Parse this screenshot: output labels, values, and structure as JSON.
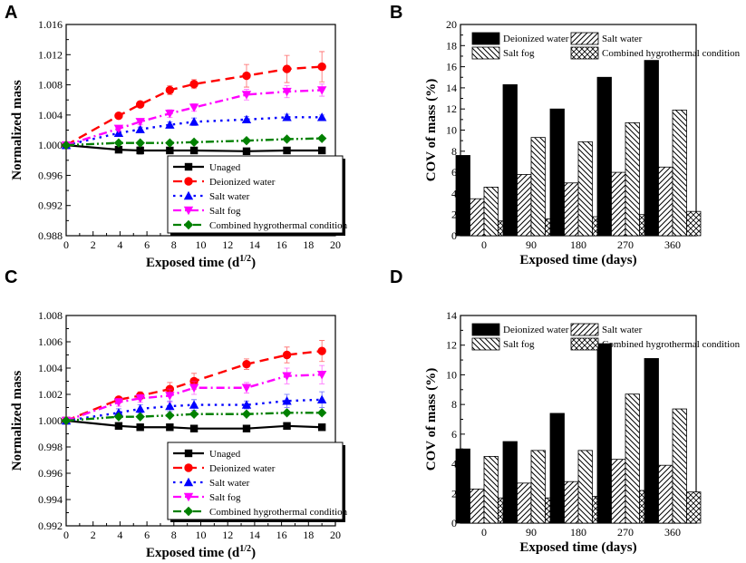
{
  "colors": {
    "unaged": "#000000",
    "deionized": "#ff0000",
    "salt_water": "#0000ff",
    "salt_fog": "#ff00ff",
    "combined": "#008000",
    "bar_fill": "#000000"
  },
  "chart_data": [
    {
      "panel": "A",
      "type": "line",
      "xlabel": "Exposed time (d",
      "xlabel_sup": "1/2",
      "xlabel_end": ")",
      "ylabel": "Normalized mass",
      "xlim": [
        0,
        20
      ],
      "ylim": [
        0.988,
        1.016
      ],
      "xticks": [
        "0",
        "2",
        "4",
        "6",
        "8",
        "10",
        "12",
        "14",
        "16",
        "18",
        "20"
      ],
      "yticks": [
        "0.988",
        "0.992",
        "0.996",
        "1.000",
        "1.004",
        "1.008",
        "1.012",
        "1.016"
      ],
      "x": [
        0,
        3.9,
        5.5,
        7.7,
        9.5,
        13.4,
        16.4,
        19
      ],
      "legend": "bottom-right",
      "series": [
        {
          "key": "unaged",
          "name": "Unaged",
          "style": "solid",
          "marker": "square",
          "values": [
            1.0,
            0.9994,
            0.9993,
            0.9993,
            0.9993,
            0.9992,
            0.9993,
            0.9993
          ],
          "err": [
            0,
            0.0003,
            0.0005,
            0.0004,
            0.0004,
            0.0003,
            0.0003,
            0.0003
          ]
        },
        {
          "key": "deionized",
          "name": "Deionized water",
          "style": "dash",
          "marker": "circle",
          "values": [
            1.0,
            1.0039,
            1.0054,
            1.0073,
            1.0081,
            1.0092,
            1.0101,
            1.0104
          ],
          "err": [
            0,
            0.0003,
            0.0004,
            0.0006,
            0.0006,
            0.0015,
            0.0018,
            0.002
          ]
        },
        {
          "key": "salt_water",
          "name": "Salt water",
          "style": "dot",
          "marker": "triangle-up",
          "values": [
            1.0,
            1.0016,
            1.0021,
            1.0027,
            1.0031,
            1.0034,
            1.0037,
            1.0037
          ],
          "err": [
            0,
            0.0003,
            0.0003,
            0.0004,
            0.0005,
            0.0004,
            0.0004,
            0.0003
          ]
        },
        {
          "key": "salt_fog",
          "name": "Salt fog",
          "style": "dashdot",
          "marker": "triangle-down",
          "values": [
            1.0,
            1.0022,
            1.0031,
            1.0042,
            1.005,
            1.0067,
            1.0071,
            1.0073
          ],
          "err": [
            0,
            0.0003,
            0.0004,
            0.0005,
            0.0005,
            0.0007,
            0.0008,
            0.0008
          ]
        },
        {
          "key": "combined",
          "name": "Combined hygrothermal condition",
          "style": "dashdotdot",
          "marker": "diamond",
          "values": [
            1.0,
            1.0003,
            1.0003,
            1.0003,
            1.0004,
            1.0006,
            1.0008,
            1.0009
          ],
          "err": [
            0,
            0.0002,
            0.0002,
            0.0002,
            0.0002,
            0.0002,
            0.0002,
            0.0002
          ]
        }
      ]
    },
    {
      "panel": "B",
      "type": "bar",
      "xlabel": "Exposed time (days)",
      "ylabel": "COV of mass (%)",
      "ylim": [
        0,
        20
      ],
      "yticks": [
        "0",
        "2",
        "4",
        "6",
        "8",
        "10",
        "12",
        "14",
        "16",
        "18",
        "20"
      ],
      "categories": [
        "0",
        "90",
        "180",
        "270",
        "360"
      ],
      "legend": "top",
      "series": [
        {
          "key": "deionized",
          "name": "Deionized water",
          "pattern": "solid",
          "values": [
            7.6,
            14.3,
            12.0,
            15.0,
            16.6
          ]
        },
        {
          "key": "salt_water",
          "name": "Salt water",
          "pattern": "diag-up",
          "values": [
            3.5,
            5.8,
            5.0,
            6.0,
            6.5
          ]
        },
        {
          "key": "salt_fog",
          "name": "Salt fog",
          "pattern": "diag-down",
          "values": [
            4.6,
            9.3,
            8.9,
            10.7,
            11.9
          ]
        },
        {
          "key": "combined",
          "name": "Combined hygrothermal condition",
          "pattern": "cross",
          "values": [
            1.4,
            1.6,
            1.8,
            2.0,
            2.3
          ]
        }
      ]
    },
    {
      "panel": "C",
      "type": "line",
      "xlabel": "Exposed time (d",
      "xlabel_sup": "1/2",
      "xlabel_end": ")",
      "ylabel": "Normalized mass",
      "xlim": [
        0,
        20
      ],
      "ylim": [
        0.992,
        1.008
      ],
      "xticks": [
        "0",
        "2",
        "4",
        "6",
        "8",
        "10",
        "12",
        "14",
        "16",
        "18",
        "20"
      ],
      "yticks": [
        "0.992",
        "0.994",
        "0.996",
        "0.998",
        "1.000",
        "1.002",
        "1.004",
        "1.006",
        "1.008"
      ],
      "x": [
        0,
        3.9,
        5.5,
        7.7,
        9.5,
        13.4,
        16.4,
        19
      ],
      "legend": "bottom-right",
      "series": [
        {
          "key": "unaged",
          "name": "Unaged",
          "style": "solid",
          "marker": "square",
          "values": [
            1.0,
            0.9996,
            0.9995,
            0.9995,
            0.9994,
            0.9994,
            0.9996,
            0.9995
          ],
          "err": [
            0,
            0.0001,
            0.0001,
            0.0001,
            0.0001,
            0.0001,
            0.0001,
            0.0001
          ]
        },
        {
          "key": "deionized",
          "name": "Deionized water",
          "style": "dash",
          "marker": "circle",
          "values": [
            1.0,
            1.0016,
            1.0019,
            1.0024,
            1.003,
            1.0043,
            1.005,
            1.0053
          ],
          "err": [
            0,
            0.0002,
            0.0003,
            0.0005,
            0.0006,
            0.0004,
            0.0006,
            0.0008
          ]
        },
        {
          "key": "salt_water",
          "name": "Salt water",
          "style": "dot",
          "marker": "triangle-up",
          "values": [
            1.0,
            1.0006,
            1.0009,
            1.0011,
            1.0012,
            1.0012,
            1.0015,
            1.0016
          ],
          "err": [
            0,
            0.0003,
            0.0003,
            0.0004,
            0.0004,
            0.0003,
            0.0005,
            0.0006
          ]
        },
        {
          "key": "salt_fog",
          "name": "Salt fog",
          "style": "dashdot",
          "marker": "triangle-down",
          "values": [
            1.0,
            1.0014,
            1.0017,
            1.0019,
            1.0025,
            1.0025,
            1.0034,
            1.0035
          ],
          "err": [
            0,
            0.0003,
            0.0003,
            0.0005,
            0.0005,
            0.0004,
            0.0006,
            0.0007
          ]
        },
        {
          "key": "combined",
          "name": "Combined hygrothermal condition",
          "style": "dashdotdot",
          "marker": "diamond",
          "values": [
            1.0,
            1.0003,
            1.0003,
            1.0004,
            1.0005,
            1.0005,
            1.0006,
            1.0006
          ],
          "err": [
            0,
            0.0001,
            0.0001,
            0.0001,
            0.0001,
            0.0001,
            0.0001,
            0.0001
          ]
        }
      ]
    },
    {
      "panel": "D",
      "type": "bar",
      "xlabel": "Exposed time (days)",
      "ylabel": "COV of mass (%)",
      "ylim": [
        0,
        14
      ],
      "yticks": [
        "0",
        "2",
        "4",
        "6",
        "8",
        "10",
        "12",
        "14"
      ],
      "categories": [
        "0",
        "90",
        "180",
        "270",
        "360"
      ],
      "legend": "top",
      "series": [
        {
          "key": "deionized",
          "name": "Deionized water",
          "pattern": "solid",
          "values": [
            5.0,
            5.5,
            7.4,
            12.1,
            11.1
          ]
        },
        {
          "key": "salt_water",
          "name": "Salt water",
          "pattern": "diag-up",
          "values": [
            2.3,
            2.7,
            2.8,
            4.3,
            3.9
          ]
        },
        {
          "key": "salt_fog",
          "name": "Salt fog",
          "pattern": "diag-down",
          "values": [
            4.5,
            4.9,
            4.9,
            8.7,
            7.7
          ]
        },
        {
          "key": "combined",
          "name": "Combined hygrothermal condition",
          "pattern": "cross",
          "values": [
            1.7,
            1.7,
            1.8,
            2.2,
            2.1
          ]
        }
      ]
    }
  ]
}
